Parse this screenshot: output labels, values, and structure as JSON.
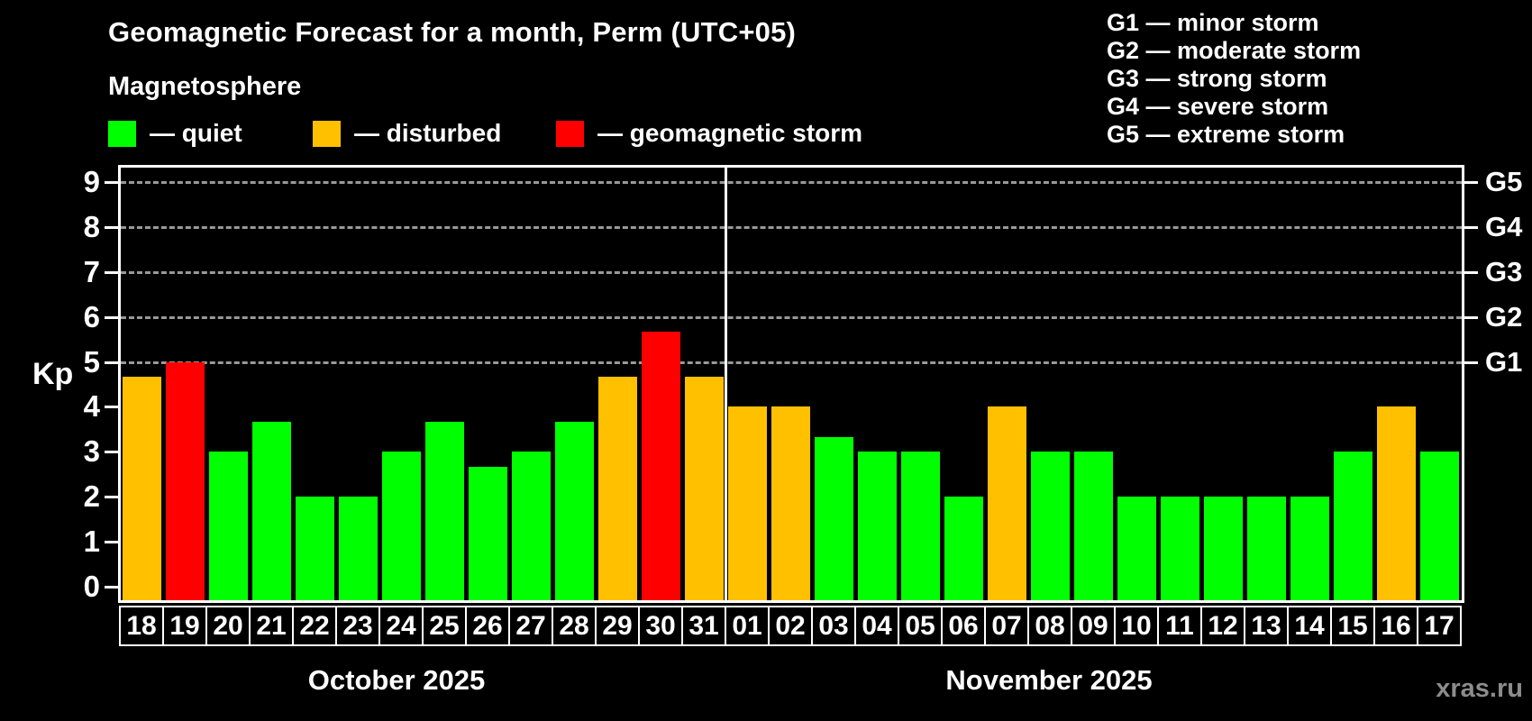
{
  "header": {
    "title": "Geomagnetic Forecast for a month, Perm (UTC+05)",
    "subtitle": "Magnetosphere",
    "legend": [
      {
        "id": "quiet",
        "label": "— quiet",
        "color": "#00ff00"
      },
      {
        "id": "disturbed",
        "label": "— disturbed",
        "color": "#ffc000"
      },
      {
        "id": "storm",
        "label": "— geomagnetic storm",
        "color": "#ff0000"
      }
    ],
    "g_legend": [
      "G1 — minor storm",
      "G2 — moderate storm",
      "G3 — strong storm",
      "G4 — severe storm",
      "G5 — extreme storm"
    ]
  },
  "chart_data": {
    "type": "bar",
    "title": "Geomagnetic Forecast for a month, Perm (UTC+05)",
    "ylabel": "Kp",
    "ylim": [
      0,
      9
    ],
    "yticks": [
      0,
      1,
      2,
      3,
      4,
      5,
      6,
      7,
      8,
      9
    ],
    "grid": "horizontal dashed lines at Kp 5-9 (G1-G5)",
    "legend_position": "top-left",
    "status_colors": {
      "quiet": "#00ff00",
      "disturbed": "#ffc000",
      "storm": "#ff0000"
    },
    "g_levels": [
      {
        "label": "G1",
        "kp": 5
      },
      {
        "label": "G2",
        "kp": 6
      },
      {
        "label": "G3",
        "kp": 7
      },
      {
        "label": "G4",
        "kp": 8
      },
      {
        "label": "G5",
        "kp": 9
      }
    ],
    "months": [
      {
        "label": "October 2025",
        "days": [
          {
            "day": "18",
            "kp": 4.67,
            "status": "disturbed"
          },
          {
            "day": "19",
            "kp": 5.0,
            "status": "storm"
          },
          {
            "day": "20",
            "kp": 3.0,
            "status": "quiet"
          },
          {
            "day": "21",
            "kp": 3.67,
            "status": "quiet"
          },
          {
            "day": "22",
            "kp": 2.0,
            "status": "quiet"
          },
          {
            "day": "23",
            "kp": 2.0,
            "status": "quiet"
          },
          {
            "day": "24",
            "kp": 3.0,
            "status": "quiet"
          },
          {
            "day": "25",
            "kp": 3.67,
            "status": "quiet"
          },
          {
            "day": "26",
            "kp": 2.67,
            "status": "quiet"
          },
          {
            "day": "27",
            "kp": 3.0,
            "status": "quiet"
          },
          {
            "day": "28",
            "kp": 3.67,
            "status": "quiet"
          },
          {
            "day": "29",
            "kp": 4.67,
            "status": "disturbed"
          },
          {
            "day": "30",
            "kp": 5.67,
            "status": "storm"
          },
          {
            "day": "31",
            "kp": 4.67,
            "status": "disturbed"
          }
        ]
      },
      {
        "label": "November 2025",
        "days": [
          {
            "day": "01",
            "kp": 4.0,
            "status": "disturbed"
          },
          {
            "day": "02",
            "kp": 4.0,
            "status": "disturbed"
          },
          {
            "day": "03",
            "kp": 3.33,
            "status": "quiet"
          },
          {
            "day": "04",
            "kp": 3.0,
            "status": "quiet"
          },
          {
            "day": "05",
            "kp": 3.0,
            "status": "quiet"
          },
          {
            "day": "06",
            "kp": 2.0,
            "status": "quiet"
          },
          {
            "day": "07",
            "kp": 4.0,
            "status": "disturbed"
          },
          {
            "day": "08",
            "kp": 3.0,
            "status": "quiet"
          },
          {
            "day": "09",
            "kp": 3.0,
            "status": "quiet"
          },
          {
            "day": "10",
            "kp": 2.0,
            "status": "quiet"
          },
          {
            "day": "11",
            "kp": 2.0,
            "status": "quiet"
          },
          {
            "day": "12",
            "kp": 2.0,
            "status": "quiet"
          },
          {
            "day": "13",
            "kp": 2.0,
            "status": "quiet"
          },
          {
            "day": "14",
            "kp": 2.0,
            "status": "quiet"
          },
          {
            "day": "15",
            "kp": 3.0,
            "status": "quiet"
          },
          {
            "day": "16",
            "kp": 4.0,
            "status": "disturbed"
          },
          {
            "day": "17",
            "kp": 3.0,
            "status": "quiet"
          }
        ]
      }
    ]
  },
  "watermark": "xras.ru"
}
